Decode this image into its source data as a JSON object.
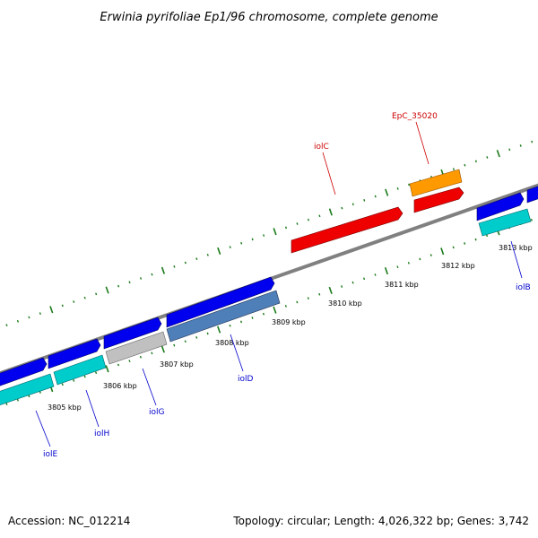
{
  "title": "Erwinia pyrifoliae Ep1/96 chromosome, complete genome",
  "footer": {
    "accession": "Accession: NC_012214",
    "topology": "Topology: circular; Length: 4,026,322 bp; Genes: 3,742"
  },
  "colors": {
    "backbone": "#808080",
    "tick": "#1a7a1a",
    "label_blue": "#0000cc",
    "label_red": "#cc0000"
  },
  "tick_labels": [
    "3805 kbp",
    "3806 kbp",
    "3807 kbp",
    "3808 kbp",
    "3809 kbp",
    "3810 kbp",
    "3811 kbp",
    "3812 kbp",
    "3813 kbp"
  ],
  "genes": [
    {
      "id": "iolE",
      "label": "iolE",
      "color": "#0000cc"
    },
    {
      "id": "iolH",
      "label": "iolH",
      "color": "#0000cc"
    },
    {
      "id": "iolG",
      "label": "iolG",
      "color": "#0000cc"
    },
    {
      "id": "iolD",
      "label": "iolD",
      "color": "#0000cc"
    },
    {
      "id": "iolC",
      "label": "iolC",
      "color": "#cc0000"
    },
    {
      "id": "EpC_35020",
      "label": "EpC_35020",
      "color": "#cc0000"
    },
    {
      "id": "iolB",
      "label": "iolB",
      "color": "#0000cc"
    }
  ]
}
